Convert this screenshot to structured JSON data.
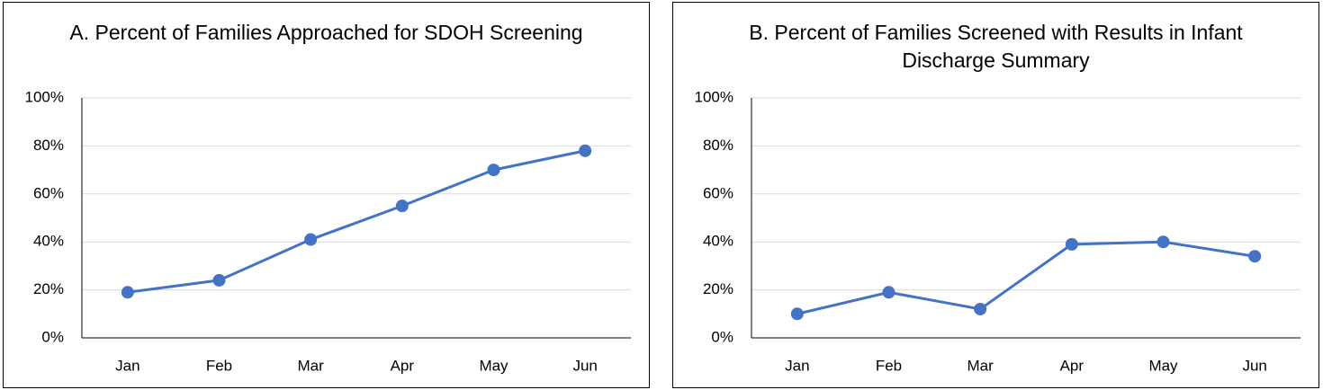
{
  "chart_data": [
    {
      "type": "line",
      "title": "A. Percent of Families Approached for SDOH Screening",
      "categories": [
        "Jan",
        "Feb",
        "Mar",
        "Apr",
        "May",
        "Jun"
      ],
      "values": [
        19,
        24,
        41,
        55,
        70,
        78
      ],
      "color": "#4472c4",
      "ylim": [
        0,
        100
      ],
      "yticks": [
        {
          "value": 0,
          "label": "0%"
        },
        {
          "value": 20,
          "label": "20%"
        },
        {
          "value": 40,
          "label": "40%"
        },
        {
          "value": 60,
          "label": "60%"
        },
        {
          "value": 80,
          "label": "80%"
        },
        {
          "value": 100,
          "label": "100%"
        }
      ],
      "grid": true
    },
    {
      "type": "line",
      "title": "B. Percent of Families Screened with Results in Infant Discharge Summary",
      "categories": [
        "Jan",
        "Feb",
        "Mar",
        "Apr",
        "May",
        "Jun"
      ],
      "values": [
        10,
        19,
        12,
        39,
        40,
        34
      ],
      "color": "#4472c4",
      "ylim": [
        0,
        100
      ],
      "yticks": [
        {
          "value": 0,
          "label": "0%"
        },
        {
          "value": 20,
          "label": "20%"
        },
        {
          "value": 40,
          "label": "40%"
        },
        {
          "value": 60,
          "label": "60%"
        },
        {
          "value": 80,
          "label": "80%"
        },
        {
          "value": 100,
          "label": "100%"
        }
      ],
      "grid": true
    }
  ]
}
